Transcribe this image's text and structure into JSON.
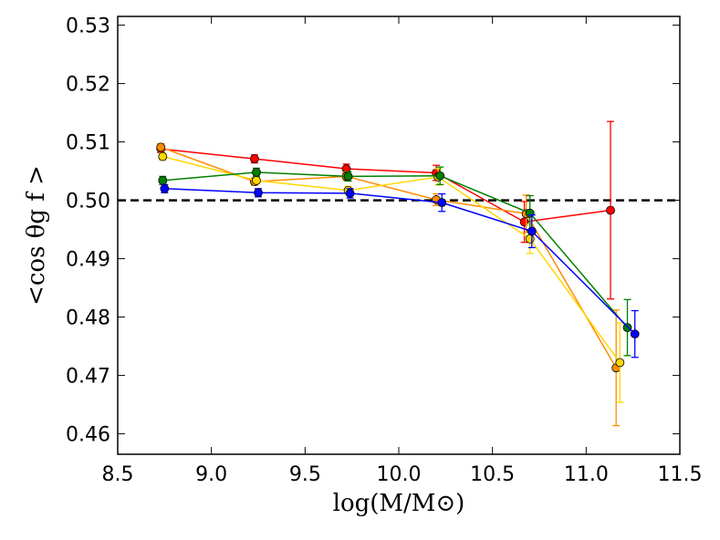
{
  "chart_data": {
    "type": "line",
    "title": "",
    "xlabel": "log(M/M⊙)",
    "ylabel": "<cos θg f >",
    "xlim": [
      8.5,
      11.5
    ],
    "ylim": [
      0.4565,
      0.5315
    ],
    "xticks": [
      "8.5",
      "9.0",
      "9.5",
      "10.0",
      "10.5",
      "11.0",
      "11.5"
    ],
    "yticks": [
      "0.46",
      "0.47",
      "0.48",
      "0.49",
      "0.50",
      "0.51",
      "0.52",
      "0.53"
    ],
    "reference_line": {
      "y": 0.5,
      "style": "dashed",
      "color": "#000000"
    },
    "series": [
      {
        "name": "red",
        "color": "#ff0000",
        "x": [
          8.73,
          9.23,
          9.72,
          10.2,
          10.67,
          11.13
        ],
        "y": [
          0.5088,
          0.5071,
          0.5054,
          0.5047,
          0.4963,
          0.4983
        ],
        "err": [
          0.0006,
          0.0007,
          0.0008,
          0.0013,
          0.0035,
          0.0152
        ]
      },
      {
        "name": "orange",
        "color": "#ff8c00",
        "x": [
          8.73,
          9.23,
          9.72,
          10.2,
          10.68,
          11.16
        ],
        "y": [
          0.5091,
          0.5032,
          0.5041,
          0.5001,
          0.4977,
          0.4713
        ],
        "err": [
          0.0006,
          0.0006,
          0.0007,
          0.001,
          0.0032,
          0.0099
        ]
      },
      {
        "name": "yellow",
        "color": "#ffd700",
        "x": [
          8.74,
          9.24,
          9.73,
          10.21,
          10.7,
          11.18
        ],
        "y": [
          0.5075,
          0.5034,
          0.5017,
          0.504,
          0.4934,
          0.4722
        ],
        "err": [
          0.0006,
          0.0006,
          0.0007,
          0.0014,
          0.0025,
          0.0068
        ]
      },
      {
        "name": "green",
        "color": "#008000",
        "x": [
          8.74,
          9.24,
          9.73,
          10.22,
          10.7,
          11.22
        ],
        "y": [
          0.5034,
          0.5048,
          0.5041,
          0.5042,
          0.4978,
          0.4782
        ],
        "err": [
          0.0007,
          0.0007,
          0.0008,
          0.0015,
          0.003,
          0.0048
        ]
      },
      {
        "name": "blue",
        "color": "#0000ff",
        "x": [
          8.75,
          9.25,
          9.74,
          10.23,
          10.71,
          11.26
        ],
        "y": [
          0.502,
          0.5013,
          0.5012,
          0.4996,
          0.4947,
          0.4771
        ],
        "err": [
          0.0007,
          0.0007,
          0.0008,
          0.0015,
          0.0028,
          0.004
        ]
      }
    ]
  }
}
